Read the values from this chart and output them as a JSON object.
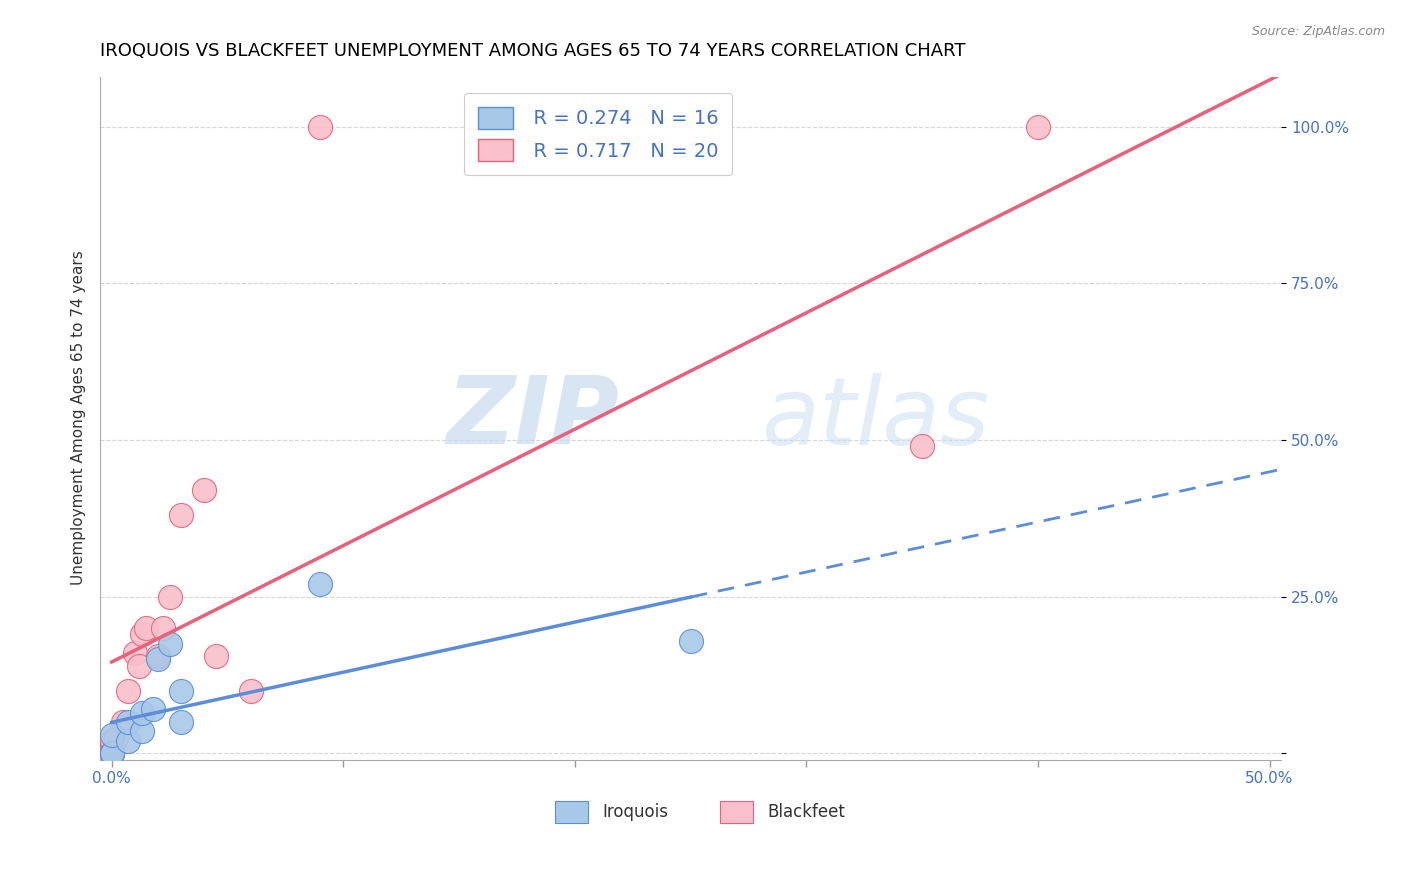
{
  "title": "IROQUOIS VS BLACKFEET UNEMPLOYMENT AMONG AGES 65 TO 74 YEARS CORRELATION CHART",
  "source": "Source: ZipAtlas.com",
  "ylabel": "Unemployment Among Ages 65 to 74 years",
  "xlim": [
    -0.005,
    0.505
  ],
  "ylim": [
    -0.01,
    1.08
  ],
  "xticks": [
    0.0,
    0.1,
    0.2,
    0.3,
    0.4,
    0.5
  ],
  "xticklabels": [
    "0.0%",
    "",
    "",
    "",
    "",
    "50.0%"
  ],
  "yticks": [
    0.0,
    0.25,
    0.5,
    0.75,
    1.0
  ],
  "yticklabels": [
    "",
    "25.0%",
    "50.0%",
    "75.0%",
    "100.0%"
  ],
  "iroquois_color": "#A8C8E8",
  "blackfeet_color": "#F9C0CB",
  "iroquois_line_color": "#5B8DD9",
  "blackfeet_line_color": "#E8607A",
  "iroquois_R": 0.274,
  "iroquois_N": 16,
  "blackfeet_R": 0.717,
  "blackfeet_N": 20,
  "watermark_zip": "ZIP",
  "watermark_atlas": "atlas",
  "grid_color": "#CCCCCC",
  "bg_color": "#FFFFFF",
  "title_fontsize": 13,
  "axis_label_fontsize": 11,
  "tick_fontsize": 11,
  "legend_fontsize": 14,
  "iroquois_x": [
    0.0,
    0.0,
    0.0,
    0.0,
    0.0,
    0.007,
    0.007,
    0.013,
    0.013,
    0.018,
    0.02,
    0.025,
    0.03,
    0.03,
    0.09,
    0.25
  ],
  "iroquois_y": [
    0.0,
    0.0,
    0.0,
    0.0,
    0.03,
    0.02,
    0.05,
    0.035,
    0.065,
    0.07,
    0.15,
    0.175,
    0.05,
    0.1,
    0.27,
    0.18
  ],
  "blackfeet_x": [
    0.0,
    0.0,
    0.0,
    0.002,
    0.005,
    0.007,
    0.01,
    0.012,
    0.013,
    0.015,
    0.02,
    0.022,
    0.025,
    0.03,
    0.04,
    0.045,
    0.06,
    0.09,
    0.35,
    0.4
  ],
  "blackfeet_y": [
    0.0,
    0.01,
    0.02,
    0.025,
    0.05,
    0.1,
    0.16,
    0.14,
    0.19,
    0.2,
    0.155,
    0.2,
    0.25,
    0.38,
    0.42,
    0.155,
    0.1,
    1.0,
    0.49,
    1.0
  ]
}
